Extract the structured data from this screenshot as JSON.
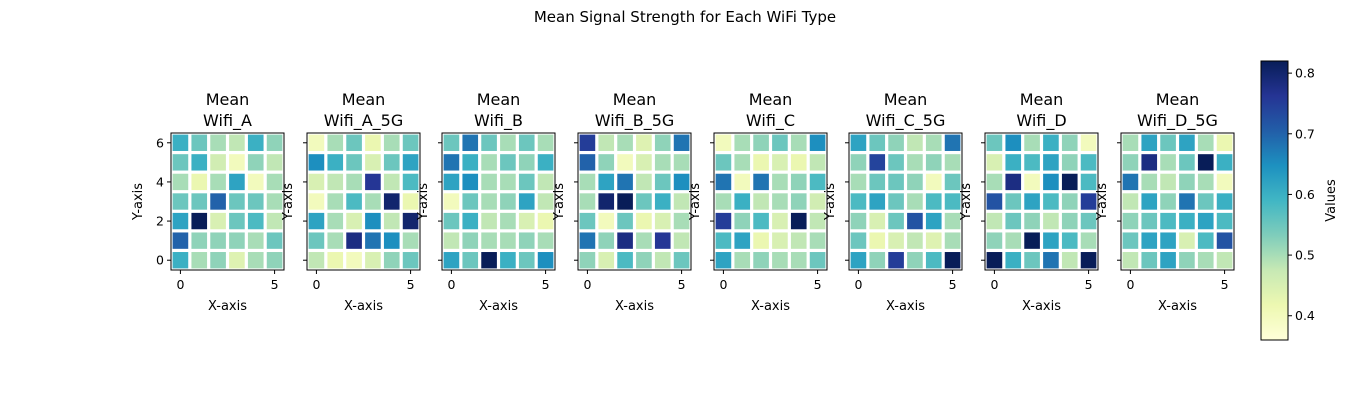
{
  "title": "Mean Signal Strength for Each WiFi Type",
  "chart_data": {
    "type": "heatmap",
    "suptitle": "Mean Signal Strength for Each WiFi Type",
    "xlabel": "X-axis",
    "ylabel": "Y-axis",
    "x_ticks": [
      "0",
      "5"
    ],
    "y_ticks": [
      "0",
      "2",
      "4",
      "6"
    ],
    "x_categories": [
      0,
      1,
      2,
      3,
      4,
      5
    ],
    "y_categories": [
      0,
      1,
      2,
      3,
      4,
      5,
      6
    ],
    "colormap": "YlGnBu",
    "colorbar": {
      "label": "Values",
      "range": [
        0.36,
        0.82
      ],
      "ticks": [
        "0.4",
        "0.5",
        "0.6",
        "0.7",
        "0.8"
      ]
    },
    "panels": [
      {
        "title": [
          "Mean",
          "Wifi_A"
        ],
        "rows": [
          [
            0.6,
            0.55,
            0.5,
            0.48,
            0.6,
            0.52
          ],
          [
            0.55,
            0.6,
            0.46,
            0.4,
            0.52,
            0.48
          ],
          [
            0.5,
            0.42,
            0.5,
            0.62,
            0.4,
            0.5
          ],
          [
            0.55,
            0.55,
            0.7,
            0.55,
            0.55,
            0.5
          ],
          [
            0.62,
            0.82,
            0.45,
            0.55,
            0.58,
            0.48
          ],
          [
            0.7,
            0.52,
            0.52,
            0.52,
            0.5,
            0.55
          ],
          [
            0.6,
            0.5,
            0.52,
            0.44,
            0.5,
            0.52
          ]
        ]
      },
      {
        "title": [
          "Mean",
          "Wifi_A_5G"
        ],
        "rows": [
          [
            0.4,
            0.5,
            0.55,
            0.42,
            0.5,
            0.55
          ],
          [
            0.65,
            0.6,
            0.55,
            0.45,
            0.55,
            0.62
          ],
          [
            0.45,
            0.48,
            0.5,
            0.76,
            0.48,
            0.58
          ],
          [
            0.4,
            0.5,
            0.58,
            0.5,
            0.8,
            0.42
          ],
          [
            0.62,
            0.5,
            0.45,
            0.65,
            0.48,
            0.8
          ],
          [
            0.55,
            0.5,
            0.78,
            0.68,
            0.65,
            0.5
          ],
          [
            0.48,
            0.42,
            0.4,
            0.45,
            0.52,
            0.55
          ]
        ]
      },
      {
        "title": [
          "Mean",
          "Wifi_B"
        ],
        "rows": [
          [
            0.55,
            0.68,
            0.55,
            0.5,
            0.55,
            0.5
          ],
          [
            0.68,
            0.6,
            0.5,
            0.55,
            0.52,
            0.6
          ],
          [
            0.62,
            0.65,
            0.5,
            0.5,
            0.55,
            0.48
          ],
          [
            0.4,
            0.55,
            0.5,
            0.52,
            0.62,
            0.48
          ],
          [
            0.55,
            0.6,
            0.48,
            0.5,
            0.45,
            0.42
          ],
          [
            0.48,
            0.52,
            0.5,
            0.5,
            0.52,
            0.5
          ],
          [
            0.62,
            0.55,
            0.82,
            0.6,
            0.55,
            0.65
          ]
        ]
      },
      {
        "title": [
          "Mean",
          "Wifi_B_5G"
        ],
        "rows": [
          [
            0.75,
            0.48,
            0.5,
            0.44,
            0.52,
            0.68
          ],
          [
            0.7,
            0.52,
            0.4,
            0.45,
            0.5,
            0.5
          ],
          [
            0.5,
            0.62,
            0.68,
            0.48,
            0.55,
            0.65
          ],
          [
            0.5,
            0.8,
            0.82,
            0.55,
            0.6,
            0.48
          ],
          [
            0.55,
            0.4,
            0.55,
            0.42,
            0.45,
            0.5
          ],
          [
            0.68,
            0.52,
            0.78,
            0.5,
            0.76,
            0.48
          ],
          [
            0.52,
            0.45,
            0.58,
            0.52,
            0.48,
            0.55
          ]
        ]
      },
      {
        "title": [
          "Mean",
          "Wifi_C"
        ],
        "rows": [
          [
            0.4,
            0.5,
            0.52,
            0.55,
            0.5,
            0.65
          ],
          [
            0.55,
            0.5,
            0.42,
            0.45,
            0.42,
            0.48
          ],
          [
            0.68,
            0.4,
            0.68,
            0.5,
            0.52,
            0.58
          ],
          [
            0.5,
            0.6,
            0.48,
            0.5,
            0.52,
            0.46
          ],
          [
            0.75,
            0.52,
            0.58,
            0.45,
            0.82,
            0.48
          ],
          [
            0.58,
            0.62,
            0.42,
            0.45,
            0.48,
            0.5
          ],
          [
            0.62,
            0.5,
            0.52,
            0.5,
            0.5,
            0.55
          ]
        ]
      },
      {
        "title": [
          "Mean",
          "Wifi_C_5G"
        ],
        "rows": [
          [
            0.62,
            0.55,
            0.52,
            0.48,
            0.5,
            0.68
          ],
          [
            0.52,
            0.74,
            0.55,
            0.5,
            0.52,
            0.5
          ],
          [
            0.5,
            0.55,
            0.55,
            0.52,
            0.4,
            0.55
          ],
          [
            0.58,
            0.62,
            0.55,
            0.5,
            0.58,
            0.58
          ],
          [
            0.52,
            0.45,
            0.55,
            0.72,
            0.62,
            0.5
          ],
          [
            0.55,
            0.42,
            0.45,
            0.48,
            0.44,
            0.5
          ],
          [
            0.62,
            0.52,
            0.75,
            0.52,
            0.58,
            0.82
          ]
        ]
      },
      {
        "title": [
          "Mean",
          "Wifi_D"
        ],
        "rows": [
          [
            0.55,
            0.65,
            0.5,
            0.6,
            0.52,
            0.4
          ],
          [
            0.45,
            0.6,
            0.58,
            0.62,
            0.52,
            0.58
          ],
          [
            0.5,
            0.78,
            0.4,
            0.65,
            0.82,
            0.58
          ],
          [
            0.72,
            0.55,
            0.62,
            0.58,
            0.52,
            0.75
          ],
          [
            0.48,
            0.55,
            0.52,
            0.48,
            0.52,
            0.55
          ],
          [
            0.52,
            0.5,
            0.82,
            0.62,
            0.58,
            0.5
          ],
          [
            0.82,
            0.6,
            0.55,
            0.68,
            0.48,
            0.82
          ]
        ]
      },
      {
        "title": [
          "Mean",
          "Wifi_D_5G"
        ],
        "rows": [
          [
            0.5,
            0.62,
            0.55,
            0.62,
            0.5,
            0.42
          ],
          [
            0.52,
            0.78,
            0.5,
            0.55,
            0.82,
            0.6
          ],
          [
            0.68,
            0.5,
            0.48,
            0.52,
            0.5,
            0.4
          ],
          [
            0.48,
            0.62,
            0.52,
            0.68,
            0.55,
            0.6
          ],
          [
            0.52,
            0.55,
            0.58,
            0.6,
            0.62,
            0.58
          ],
          [
            0.55,
            0.62,
            0.62,
            0.45,
            0.58,
            0.72
          ],
          [
            0.48,
            0.55,
            0.62,
            0.52,
            0.5,
            0.48
          ]
        ]
      }
    ]
  }
}
